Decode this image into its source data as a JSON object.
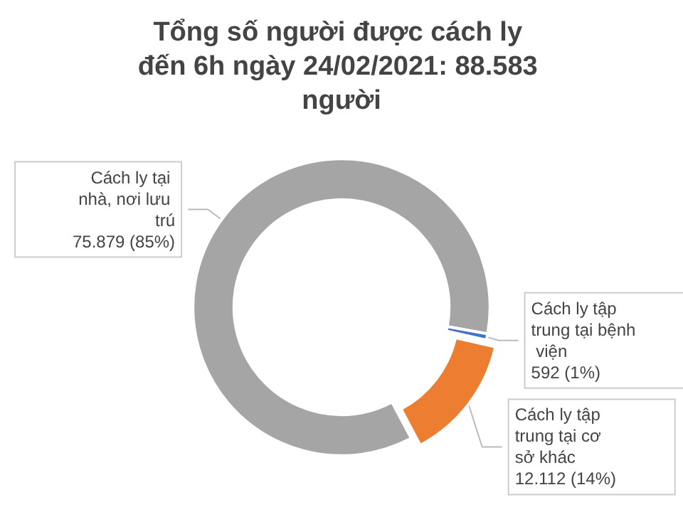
{
  "chart_data": {
    "type": "donut",
    "title": "Tổng số người được cách ly đến 6h ngày 24/02/2021: 88.583 người",
    "categories": [
      "Cách ly tại nhà, nơi lưu trú",
      "Cách ly tập trung tại bệnh viện",
      "Cách ly tập trung tại cơ sở khác"
    ],
    "values": [
      75879,
      592,
      12112
    ],
    "value_labels": [
      "75.879 (85%)",
      "592 (1%)",
      "12.112 (14%)"
    ],
    "colors": [
      "#a5a5a5",
      "#4472c4",
      "#ed7d31"
    ],
    "legend": false
  }
}
